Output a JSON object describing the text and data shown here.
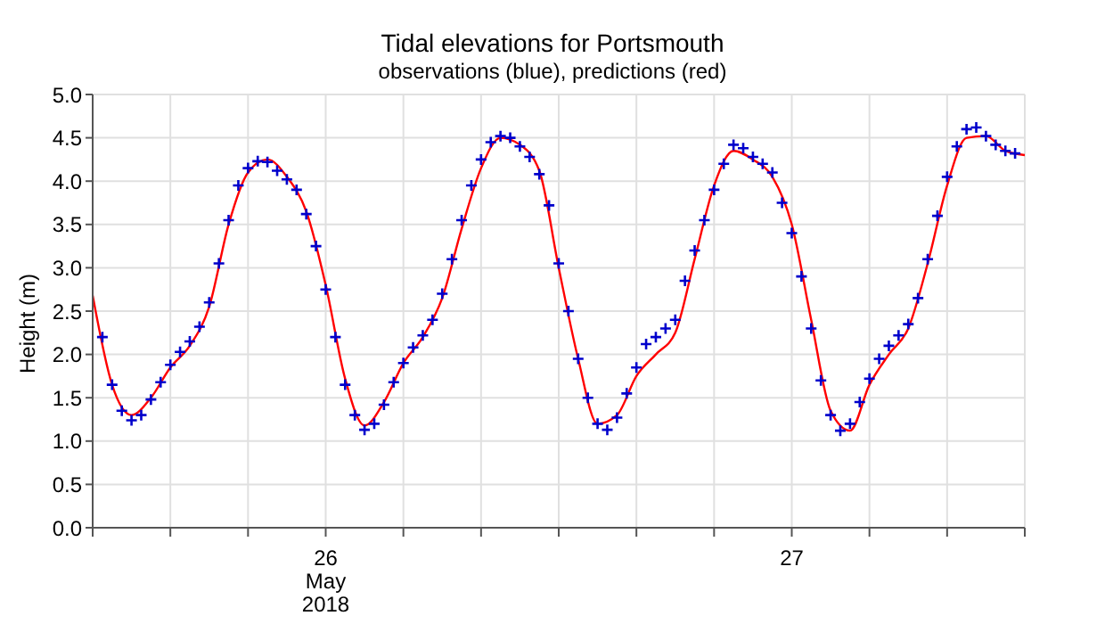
{
  "chart_data": {
    "type": "line",
    "title": "Tidal elevations for Portsmouth",
    "subtitle": "observations (blue), predictions (red)",
    "ylabel": "Height (m)",
    "xlim": [
      "2018-05-26T00:00",
      "2018-05-28T00:00"
    ],
    "xticks": [
      {
        "value": "2018-05-26T00:00",
        "label": null
      },
      {
        "value": "2018-05-26T04:00",
        "label": null
      },
      {
        "value": "2018-05-26T08:00",
        "label": null
      },
      {
        "value": "2018-05-26T12:00",
        "label": "26\nMay\n2018"
      },
      {
        "value": "2018-05-26T16:00",
        "label": null
      },
      {
        "value": "2018-05-26T20:00",
        "label": null
      },
      {
        "value": "2018-05-27T00:00",
        "label": null
      },
      {
        "value": "2018-05-27T04:00",
        "label": null
      },
      {
        "value": "2018-05-27T08:00",
        "label": null
      },
      {
        "value": "2018-05-27T12:00",
        "label": "27"
      },
      {
        "value": "2018-05-27T16:00",
        "label": null
      },
      {
        "value": "2018-05-27T20:00",
        "label": null
      },
      {
        "value": "2018-05-28T00:00",
        "label": null
      }
    ],
    "ylim": [
      0,
      5
    ],
    "yticks": [
      {
        "value": 0,
        "label": "0.0"
      },
      {
        "value": 0.5,
        "label": "0.5"
      },
      {
        "value": 1,
        "label": "1.0"
      },
      {
        "value": 1.5,
        "label": "1.5"
      },
      {
        "value": 2,
        "label": "2.0"
      },
      {
        "value": 2.5,
        "label": "2.5"
      },
      {
        "value": 3,
        "label": "3.0"
      },
      {
        "value": 3.5,
        "label": "3.5"
      },
      {
        "value": 4,
        "label": "4.0"
      },
      {
        "value": 4.5,
        "label": "4.5"
      },
      {
        "value": 5,
        "label": "5.0"
      }
    ],
    "grid": true,
    "series": [
      {
        "color": "#ff0000",
        "marker": "none",
        "line_style": "solid",
        "x": [
          "2018-05-26T00:00",
          "2018-05-26T01:00",
          "2018-05-26T02:00",
          "2018-05-26T03:00",
          "2018-05-26T04:00",
          "2018-05-26T05:00",
          "2018-05-26T06:00",
          "2018-05-26T07:00",
          "2018-05-26T08:00",
          "2018-05-26T09:00",
          "2018-05-26T10:00",
          "2018-05-26T11:00",
          "2018-05-26T12:00",
          "2018-05-26T13:00",
          "2018-05-26T14:00",
          "2018-05-26T15:00",
          "2018-05-26T16:00",
          "2018-05-26T17:00",
          "2018-05-26T18:00",
          "2018-05-26T19:00",
          "2018-05-26T20:00",
          "2018-05-26T21:00",
          "2018-05-26T22:00",
          "2018-05-26T23:00",
          "2018-05-27T00:00",
          "2018-05-27T01:00",
          "2018-05-27T02:00",
          "2018-05-27T03:00",
          "2018-05-27T04:00",
          "2018-05-27T05:00",
          "2018-05-27T06:00",
          "2018-05-27T07:00",
          "2018-05-27T08:00",
          "2018-05-27T09:00",
          "2018-05-27T10:00",
          "2018-05-27T11:00",
          "2018-05-27T12:00",
          "2018-05-27T13:00",
          "2018-05-27T14:00",
          "2018-05-27T15:00",
          "2018-05-27T16:00",
          "2018-05-27T17:00",
          "2018-05-27T18:00",
          "2018-05-27T19:00",
          "2018-05-27T20:00",
          "2018-05-27T21:00",
          "2018-05-27T22:00",
          "2018-05-27T23:00",
          "2018-05-28T00:00"
        ],
        "values": [
          2.68,
          1.65,
          1.3,
          1.5,
          1.85,
          2.1,
          2.55,
          3.5,
          4.1,
          4.25,
          4.05,
          3.65,
          2.8,
          1.72,
          1.18,
          1.45,
          1.9,
          2.2,
          2.65,
          3.45,
          4.15,
          4.5,
          4.42,
          4.12,
          3.0,
          1.95,
          1.2,
          1.3,
          1.75,
          2.0,
          2.25,
          3.1,
          3.95,
          4.35,
          4.25,
          4.05,
          3.5,
          2.4,
          1.35,
          1.12,
          1.65,
          2.0,
          2.3,
          3.05,
          3.95,
          4.5,
          4.52,
          4.35,
          4.3
        ]
      },
      {
        "type": "scatter",
        "color": "#0000cc",
        "marker": "cross",
        "x": [
          "2018-05-26T00:30",
          "2018-05-26T01:00",
          "2018-05-26T01:30",
          "2018-05-26T02:00",
          "2018-05-26T02:30",
          "2018-05-26T03:00",
          "2018-05-26T03:30",
          "2018-05-26T04:00",
          "2018-05-26T04:30",
          "2018-05-26T05:00",
          "2018-05-26T05:30",
          "2018-05-26T06:00",
          "2018-05-26T06:30",
          "2018-05-26T07:00",
          "2018-05-26T07:30",
          "2018-05-26T08:00",
          "2018-05-26T08:30",
          "2018-05-26T09:00",
          "2018-05-26T09:30",
          "2018-05-26T10:00",
          "2018-05-26T10:30",
          "2018-05-26T11:00",
          "2018-05-26T11:30",
          "2018-05-26T12:00",
          "2018-05-26T12:30",
          "2018-05-26T13:00",
          "2018-05-26T13:30",
          "2018-05-26T14:00",
          "2018-05-26T14:30",
          "2018-05-26T15:00",
          "2018-05-26T15:30",
          "2018-05-26T16:00",
          "2018-05-26T16:30",
          "2018-05-26T17:00",
          "2018-05-26T17:30",
          "2018-05-26T18:00",
          "2018-05-26T18:30",
          "2018-05-26T19:00",
          "2018-05-26T19:30",
          "2018-05-26T20:00",
          "2018-05-26T20:30",
          "2018-05-26T21:00",
          "2018-05-26T21:30",
          "2018-05-26T22:00",
          "2018-05-26T22:30",
          "2018-05-26T23:00",
          "2018-05-26T23:30",
          "2018-05-27T00:00",
          "2018-05-27T00:30",
          "2018-05-27T01:00",
          "2018-05-27T01:30",
          "2018-05-27T02:00",
          "2018-05-27T02:30",
          "2018-05-27T03:00",
          "2018-05-27T03:30",
          "2018-05-27T04:00",
          "2018-05-27T04:30",
          "2018-05-27T05:00",
          "2018-05-27T05:30",
          "2018-05-27T06:00",
          "2018-05-27T06:30",
          "2018-05-27T07:00",
          "2018-05-27T07:30",
          "2018-05-27T08:00",
          "2018-05-27T08:30",
          "2018-05-27T09:00",
          "2018-05-27T09:30",
          "2018-05-27T10:00",
          "2018-05-27T10:30",
          "2018-05-27T11:00",
          "2018-05-27T11:30",
          "2018-05-27T12:00",
          "2018-05-27T12:30",
          "2018-05-27T13:00",
          "2018-05-27T13:30",
          "2018-05-27T14:00",
          "2018-05-27T14:30",
          "2018-05-27T15:00",
          "2018-05-27T15:30",
          "2018-05-27T16:00",
          "2018-05-27T16:30",
          "2018-05-27T17:00",
          "2018-05-27T17:30",
          "2018-05-27T18:00",
          "2018-05-27T18:30",
          "2018-05-27T19:00",
          "2018-05-27T19:30",
          "2018-05-27T20:00",
          "2018-05-27T20:30",
          "2018-05-27T21:00",
          "2018-05-27T21:30",
          "2018-05-27T22:00",
          "2018-05-27T22:30",
          "2018-05-27T23:00",
          "2018-05-27T23:30"
        ],
        "values": [
          2.2,
          1.65,
          1.35,
          1.24,
          1.3,
          1.48,
          1.68,
          1.88,
          2.03,
          2.15,
          2.32,
          2.6,
          3.05,
          3.55,
          3.95,
          4.15,
          4.23,
          4.22,
          4.12,
          4.02,
          3.9,
          3.62,
          3.25,
          2.75,
          2.2,
          1.65,
          1.3,
          1.13,
          1.2,
          1.42,
          1.68,
          1.9,
          2.08,
          2.22,
          2.4,
          2.7,
          3.1,
          3.55,
          3.95,
          4.25,
          4.45,
          4.52,
          4.5,
          4.4,
          4.28,
          4.08,
          3.72,
          3.05,
          2.5,
          1.95,
          1.5,
          1.2,
          1.13,
          1.27,
          1.55,
          1.85,
          2.12,
          2.2,
          2.3,
          2.4,
          2.85,
          3.2,
          3.55,
          3.9,
          4.2,
          4.42,
          4.38,
          4.28,
          4.2,
          4.1,
          3.75,
          3.4,
          2.9,
          2.3,
          1.7,
          1.3,
          1.12,
          1.2,
          1.45,
          1.72,
          1.95,
          2.1,
          2.22,
          2.35,
          2.65,
          3.1,
          3.6,
          4.05,
          4.4,
          4.6,
          4.62,
          4.52,
          4.42,
          4.35,
          4.32
        ]
      }
    ]
  }
}
